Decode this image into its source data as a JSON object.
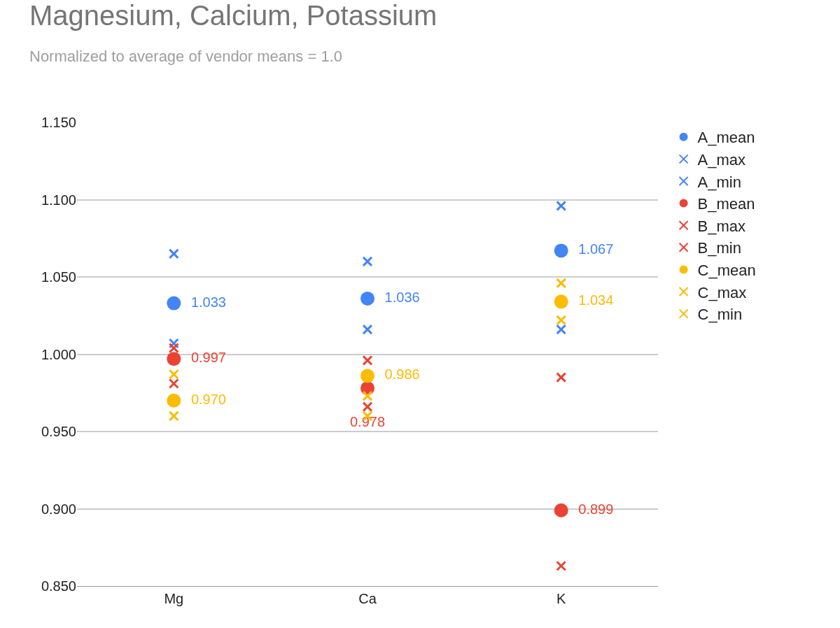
{
  "chart_data": {
    "type": "scatter",
    "title": "Magnesium, Calcium, Potassium",
    "subtitle": "Normalized to average of vendor means = 1.0",
    "categories": [
      "Mg",
      "Ca",
      "K"
    ],
    "series": [
      {
        "name": "A_mean",
        "color": "#4285f4",
        "marker": "circle",
        "values": [
          1.033,
          1.036,
          1.067
        ],
        "value_labels": [
          "1.033",
          "1.036",
          "1.067"
        ]
      },
      {
        "name": "A_max",
        "color": "#4285f4",
        "marker": "cross",
        "values": [
          1.065,
          1.06,
          1.096
        ]
      },
      {
        "name": "A_min",
        "color": "#4285f4",
        "marker": "cross",
        "values": [
          1.007,
          1.016,
          1.016
        ]
      },
      {
        "name": "B_mean",
        "color": "#ea4335",
        "marker": "circle",
        "values": [
          0.997,
          0.978,
          0.899
        ],
        "value_labels": [
          "0.997",
          "0.978",
          "0.899"
        ]
      },
      {
        "name": "B_max",
        "color": "#ea4335",
        "marker": "cross",
        "values": [
          1.004,
          0.996,
          0.985
        ]
      },
      {
        "name": "B_min",
        "color": "#ea4335",
        "marker": "cross",
        "values": [
          0.981,
          0.966,
          0.863
        ]
      },
      {
        "name": "C_mean",
        "color": "#fbbc04",
        "marker": "circle",
        "values": [
          0.97,
          0.986,
          1.034
        ],
        "value_labels": [
          "0.970",
          "0.986",
          "1.034"
        ]
      },
      {
        "name": "C_max",
        "color": "#fbbc04",
        "marker": "cross",
        "values": [
          0.987,
          0.973,
          1.046
        ]
      },
      {
        "name": "C_min",
        "color": "#fbbc04",
        "marker": "cross",
        "values": [
          0.96,
          0.96,
          1.022
        ]
      }
    ],
    "ylim": [
      0.85,
      1.15
    ],
    "yticks": [
      {
        "value": 0.85,
        "label": "0.850"
      },
      {
        "value": 0.9,
        "label": "0.900"
      },
      {
        "value": 0.95,
        "label": "0.950"
      },
      {
        "value": 1.0,
        "label": "1.000"
      },
      {
        "value": 1.05,
        "label": "1.050"
      },
      {
        "value": 1.1,
        "label": "1.100"
      },
      {
        "value": 1.15,
        "label": "1.150"
      }
    ],
    "grid": "y",
    "legend": "right"
  }
}
